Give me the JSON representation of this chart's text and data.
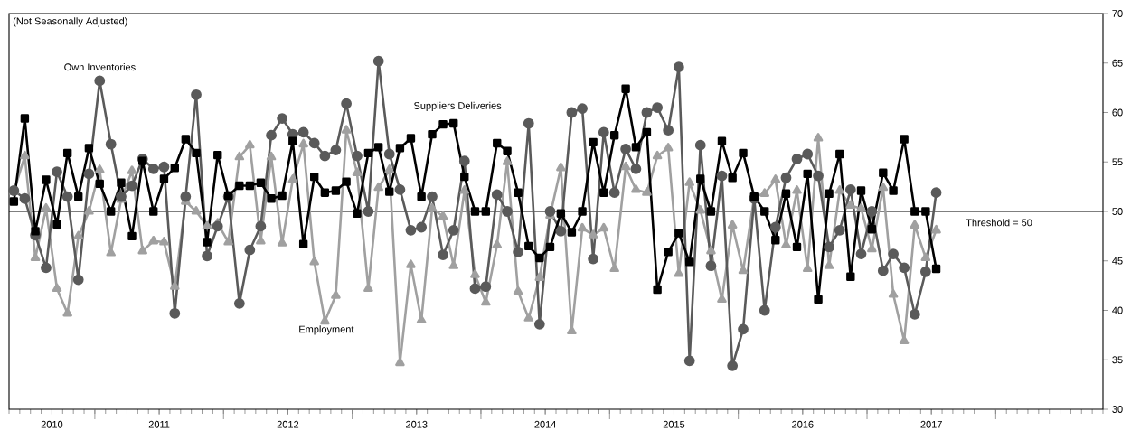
{
  "chart_data": {
    "type": "line",
    "subtitle": "(Not Seasonally Adjusted)",
    "x": [
      "2010-05-15",
      "2010-06-15",
      "2010-07-15",
      "2010-08-15",
      "2010-09-15",
      "2010-10-15",
      "2010-11-15",
      "2010-12-15",
      "2011-01-15",
      "2011-02-15",
      "2011-03-15",
      "2011-04-15",
      "2011-05-15",
      "2011-06-15",
      "2011-07-15",
      "2011-08-15",
      "2011-09-15",
      "2011-10-15",
      "2011-11-15",
      "2011-12-15",
      "2012-01-15",
      "2012-02-15",
      "2012-03-15",
      "2012-04-15",
      "2012-05-15",
      "2012-06-15",
      "2012-07-15",
      "2012-08-15",
      "2012-09-15",
      "2012-10-15",
      "2012-11-15",
      "2012-12-15",
      "2013-01-15",
      "2013-02-15",
      "2013-03-15",
      "2013-04-15",
      "2013-05-15",
      "2013-06-15",
      "2013-07-15",
      "2013-08-15",
      "2013-09-15",
      "2013-10-15",
      "2013-11-15",
      "2013-12-15",
      "2014-01-15",
      "2014-02-15",
      "2014-03-15",
      "2014-04-15",
      "2014-05-15",
      "2014-06-15",
      "2014-07-15",
      "2014-08-15",
      "2014-09-15",
      "2014-10-15",
      "2014-11-15",
      "2014-12-15",
      "2015-01-15",
      "2015-02-15",
      "2015-03-15",
      "2015-04-15",
      "2015-05-15",
      "2015-06-15",
      "2015-07-15",
      "2015-08-15",
      "2015-09-15",
      "2015-10-15",
      "2015-11-15",
      "2015-12-15",
      "2016-01-15",
      "2016-02-15",
      "2016-03-15",
      "2016-04-15",
      "2016-05-15",
      "2016-06-15",
      "2016-07-15",
      "2016-08-15",
      "2016-09-15",
      "2016-10-15",
      "2016-11-15",
      "2016-12-15",
      "2017-01-15",
      "2017-02-15",
      "2017-03-15",
      "2017-04-15",
      "2017-05-15",
      "2017-06-15",
      "2017-07-15"
    ],
    "xlim": [
      "2010-05-01",
      "2018-11-01"
    ],
    "xticks": [
      {
        "value": "2010-09-01",
        "label": "2010"
      },
      {
        "value": "2011-07-01",
        "label": "2011"
      },
      {
        "value": "2012-07-01",
        "label": "2012"
      },
      {
        "value": "2013-07-01",
        "label": "2013"
      },
      {
        "value": "2014-07-01",
        "label": "2014"
      },
      {
        "value": "2015-07-01",
        "label": "2015"
      },
      {
        "value": "2016-07-01",
        "label": "2016"
      },
      {
        "value": "2017-07-01",
        "label": "2017"
      },
      {
        "value": "2011-01-01",
        "label": null
      },
      {
        "value": "2012-01-01",
        "label": null
      },
      {
        "value": "2013-01-01",
        "label": null
      },
      {
        "value": "2014-01-01",
        "label": null
      },
      {
        "value": "2015-01-01",
        "label": null
      },
      {
        "value": "2016-01-01",
        "label": null
      },
      {
        "value": "2017-01-01",
        "label": null
      },
      {
        "value": "2018-01-01",
        "label": null
      }
    ],
    "ylim": [
      30,
      70
    ],
    "yticks": [
      30,
      35,
      40,
      45,
      50,
      55,
      60,
      65,
      70
    ],
    "series": [
      {
        "name": "Employment",
        "color": "#a0a0a0",
        "marker": "triangle",
        "values": [
          52.0,
          55.6,
          45.3,
          50.3,
          42.2,
          39.7,
          47.5,
          50.0,
          54.2,
          45.8,
          51.2,
          54.1,
          46.0,
          47.0,
          46.9,
          42.4,
          51.0,
          50.0,
          48.5,
          48.8,
          46.9,
          55.5,
          56.7,
          47.0,
          55.5,
          46.8,
          53.2,
          56.8,
          44.9,
          38.9,
          41.5,
          58.2,
          53.9,
          42.2,
          52.4,
          54.2,
          34.7,
          44.6,
          39.0,
          50.3,
          49.5,
          44.5,
          52.1,
          43.6,
          40.8,
          46.6,
          55.0,
          41.9,
          39.2,
          43.3,
          49.6,
          54.4,
          37.9,
          48.3,
          47.6,
          48.3,
          44.2,
          54.5,
          52.2,
          51.9,
          55.6,
          56.4,
          43.7,
          52.9,
          50.1,
          46.0,
          41.1,
          48.6,
          44.0,
          51.5,
          51.8,
          53.2,
          46.6,
          52.1,
          44.2,
          57.4,
          44.5,
          52.1,
          50.6,
          50.3,
          46.2,
          52.4,
          41.6,
          36.9,
          48.6,
          45.3,
          48.1
        ]
      },
      {
        "name": "Own Inventories",
        "color": "#5a5a5a",
        "marker": "circle",
        "values": [
          52.1,
          51.3,
          47.6,
          44.3,
          54.0,
          51.5,
          43.1,
          53.8,
          63.2,
          56.8,
          51.5,
          52.6,
          55.3,
          54.3,
          54.5,
          39.7,
          51.5,
          61.8,
          45.5,
          48.5,
          51.5,
          40.7,
          46.1,
          48.5,
          57.7,
          59.4,
          57.8,
          58.0,
          56.9,
          55.6,
          56.2,
          60.9,
          55.6,
          50.0,
          65.2,
          55.8,
          52.2,
          48.1,
          48.4,
          51.5,
          45.6,
          48.1,
          55.1,
          42.2,
          42.4,
          51.7,
          50.0,
          45.9,
          58.9,
          38.6,
          50.0,
          48.0,
          60.0,
          60.4,
          45.2,
          58.0,
          51.9,
          56.3,
          54.3,
          60.0,
          60.5,
          58.2,
          64.6,
          34.9,
          56.7,
          44.5,
          53.6,
          34.4,
          38.1,
          51.3,
          40.0,
          48.4,
          53.4,
          55.3,
          55.8,
          53.6,
          46.4,
          48.1,
          52.2,
          45.7,
          50.0,
          44.0,
          45.7,
          44.3,
          39.6,
          43.9,
          51.9
        ]
      },
      {
        "name": "Suppliers Deliveries",
        "color": "#000000",
        "marker": "square",
        "values": [
          51.0,
          59.4,
          48.0,
          53.2,
          48.7,
          55.9,
          51.5,
          56.4,
          52.8,
          50.0,
          52.9,
          47.5,
          55.1,
          50.0,
          53.3,
          54.4,
          57.3,
          55.9,
          46.9,
          55.7,
          51.6,
          52.6,
          52.6,
          52.9,
          51.3,
          51.6,
          57.1,
          46.7,
          53.5,
          51.9,
          52.1,
          53.0,
          49.8,
          55.9,
          56.5,
          52.0,
          56.4,
          57.4,
          51.5,
          57.8,
          58.8,
          58.9,
          53.5,
          50.0,
          50.0,
          56.9,
          56.1,
          51.9,
          46.5,
          45.3,
          46.4,
          49.8,
          47.9,
          50.0,
          57.0,
          51.9,
          57.7,
          62.4,
          56.5,
          58.0,
          42.1,
          45.9,
          47.8,
          44.9,
          53.3,
          50.0,
          57.1,
          53.4,
          55.9,
          51.5,
          50.0,
          47.1,
          51.8,
          46.4,
          53.8,
          41.1,
          51.8,
          55.8,
          43.4,
          52.1,
          48.2,
          53.9,
          52.1,
          57.3,
          50.0,
          50.0,
          44.2
        ]
      }
    ],
    "ref_lines": [
      {
        "axis": "y",
        "value": 50,
        "label": "Threshold = 50",
        "color": "#000000"
      }
    ]
  }
}
